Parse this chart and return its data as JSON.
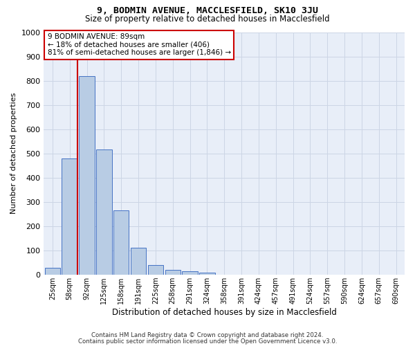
{
  "title": "9, BODMIN AVENUE, MACCLESFIELD, SK10 3JU",
  "subtitle": "Size of property relative to detached houses in Macclesfield",
  "xlabel": "Distribution of detached houses by size in Macclesfield",
  "ylabel": "Number of detached properties",
  "bar_labels": [
    "25sqm",
    "58sqm",
    "92sqm",
    "125sqm",
    "158sqm",
    "191sqm",
    "225sqm",
    "258sqm",
    "291sqm",
    "324sqm",
    "358sqm",
    "391sqm",
    "424sqm",
    "457sqm",
    "491sqm",
    "524sqm",
    "557sqm",
    "590sqm",
    "624sqm",
    "657sqm",
    "690sqm"
  ],
  "bar_heights": [
    28,
    480,
    820,
    515,
    265,
    110,
    38,
    18,
    12,
    8,
    0,
    0,
    0,
    0,
    0,
    0,
    0,
    0,
    0,
    0,
    0
  ],
  "bar_color": "#b8cce4",
  "bar_edge_color": "#4472c4",
  "red_line_color": "#cc0000",
  "red_line_bin": 1,
  "annotation_line1": "9 BODMIN AVENUE: 89sqm",
  "annotation_line2": "← 18% of detached houses are smaller (406)",
  "annotation_line3": "81% of semi-detached houses are larger (1,846) →",
  "annotation_box_facecolor": "#ffffff",
  "annotation_box_edgecolor": "#cc0000",
  "ylim": [
    0,
    1000
  ],
  "yticks": [
    0,
    100,
    200,
    300,
    400,
    500,
    600,
    700,
    800,
    900,
    1000
  ],
  "grid_color": "#ccd5e5",
  "bg_color": "#e8eef8",
  "footer1": "Contains HM Land Registry data © Crown copyright and database right 2024.",
  "footer2": "Contains public sector information licensed under the Open Government Licence v3.0."
}
